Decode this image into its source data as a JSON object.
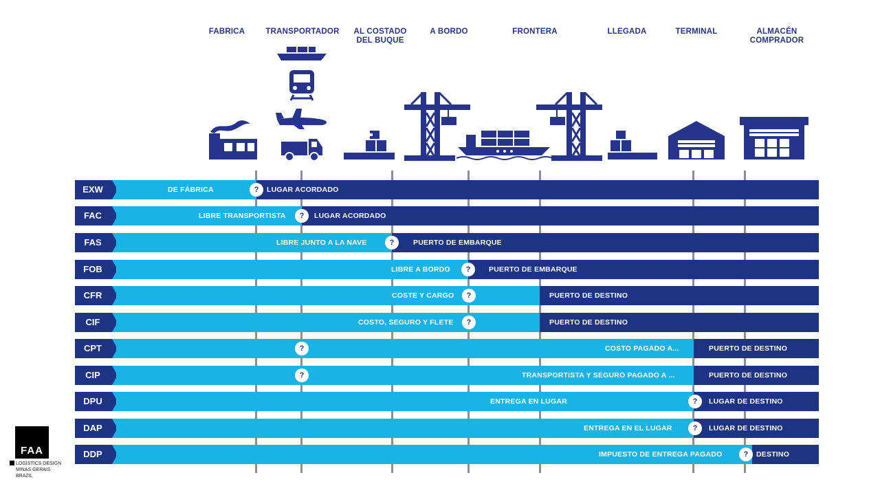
{
  "stages": [
    "FABRICA",
    "TRANSPORTADOR",
    "AL COSTADO\nDEL BUQUE",
    "A BORDO",
    "FRONTERA",
    "LLEGADA",
    "TERMINAL",
    "ALMACÉN\nCOMPRADOR"
  ],
  "icons": {
    "factory": "factory-icon",
    "ship_small": "cargo-ship-icon",
    "train": "train-icon",
    "plane": "airplane-icon",
    "truck": "truck-icon",
    "pallet": "pallet-boxes-icon",
    "crane": "port-crane-icon",
    "ship": "container-ship-icon",
    "terminal": "terminal-warehouse-icon",
    "warehouse": "buyer-warehouse-icon"
  },
  "colors": {
    "light": "#1ab3e6",
    "dark": "#1d3383",
    "gridline": "#8b8f99"
  },
  "rows": [
    {
      "code": "EXW",
      "light_text": "DE FÁBRICA",
      "dark_text": "LUGAR ACORDADO"
    },
    {
      "code": "FAC",
      "light_text": "LIBRE TRANSPORTISTA",
      "dark_text": "LUGAR ACORDADO"
    },
    {
      "code": "FAS",
      "light_text": "LIBRE JUNTO A LA NAVE",
      "dark_text": "PUERTO DE EMBARQUE"
    },
    {
      "code": "FOB",
      "light_text": "LIBRE A BORDO",
      "dark_text": "PUERTO DE EMBARQUE"
    },
    {
      "code": "CFR",
      "light_text": "COSTE Y CARGO",
      "dark_text": "PUERTO DE DESTINO"
    },
    {
      "code": "CIF",
      "light_text": "COSTO, SEGURO Y FLETE",
      "dark_text": "PUERTO DE DESTINO"
    },
    {
      "code": "CPT",
      "light_text": "COSTO PAGADO A...",
      "dark_text": "PUERTO DE DESTINO"
    },
    {
      "code": "CIP",
      "light_text": "TRANSPORTISTA Y SEGURO PAGADO A ...",
      "dark_text": "PUERTO DE DESTINO"
    },
    {
      "code": "DPU",
      "light_text": "ENTREGA EN LUGAR",
      "dark_text": "LUGAR DE DESTINO"
    },
    {
      "code": "DAP",
      "light_text": "ENTREGA EN EL LUGAR",
      "dark_text": "LUGAR DE DESTINO"
    },
    {
      "code": "DDP",
      "light_text": "IMPUESTO DE ENTREGA PAGADO",
      "dark_text": "DESTINO"
    }
  ],
  "question_mark": "?",
  "logo": {
    "mark": "FAA",
    "lines": [
      "LOGISTICS DESIGN",
      "MINAS GERAIS",
      "BRAZIL"
    ]
  }
}
